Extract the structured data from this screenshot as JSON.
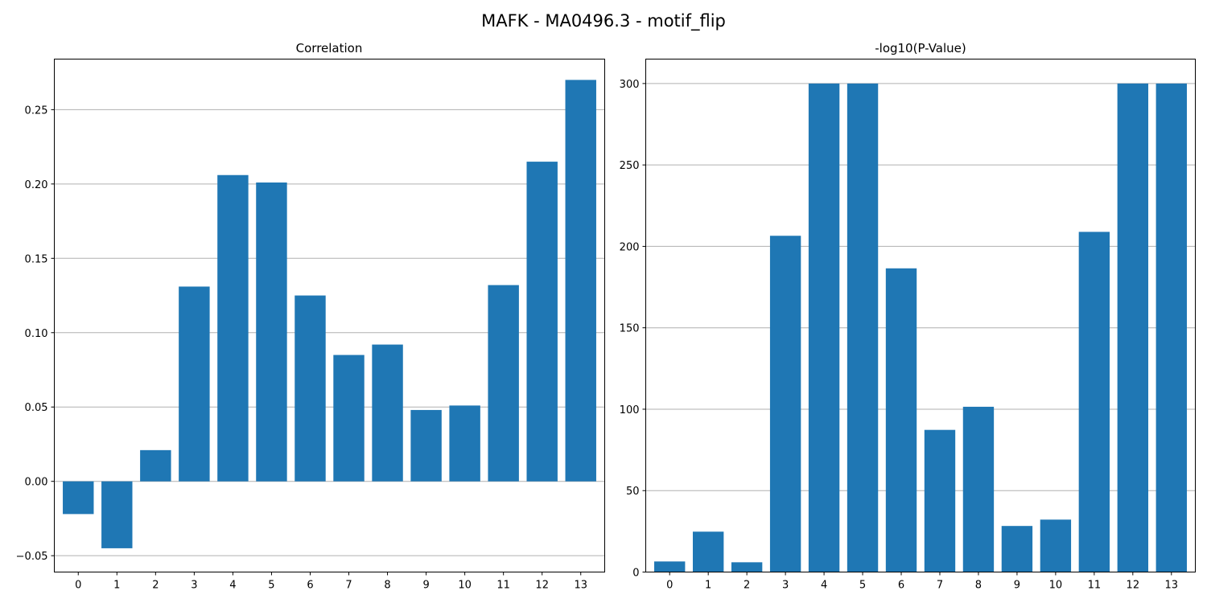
{
  "figure": {
    "title": "MAFK - MA0496.3 - motif_flip"
  },
  "colors": {
    "bar": "#1f77b4",
    "grid": "#b0b0b0",
    "axis": "#000000"
  },
  "chart_data": [
    {
      "type": "bar",
      "title": "Correlation",
      "xlabel": "",
      "ylabel": "",
      "categories": [
        "0",
        "1",
        "2",
        "3",
        "4",
        "5",
        "6",
        "7",
        "8",
        "9",
        "10",
        "11",
        "12",
        "13"
      ],
      "values": [
        -0.022,
        -0.045,
        0.021,
        0.131,
        0.206,
        0.201,
        0.125,
        0.085,
        0.092,
        0.048,
        0.051,
        0.132,
        0.215,
        0.27
      ],
      "ylim": [
        -0.061,
        0.284
      ],
      "yticks": [
        -0.05,
        0.0,
        0.05,
        0.1,
        0.15,
        0.2,
        0.25
      ],
      "ytick_labels": [
        "−0.05",
        "0.00",
        "0.05",
        "0.10",
        "0.15",
        "0.20",
        "0.25"
      ],
      "grid": "y"
    },
    {
      "type": "bar",
      "title": "-log10(P-Value)",
      "xlabel": "",
      "ylabel": "",
      "categories": [
        "0",
        "1",
        "2",
        "3",
        "4",
        "5",
        "6",
        "7",
        "8",
        "9",
        "10",
        "11",
        "12",
        "13"
      ],
      "values": [
        6.5,
        24.8,
        6.0,
        206.5,
        300.0,
        300.0,
        186.5,
        87.3,
        101.5,
        28.3,
        32.2,
        208.9,
        300.0,
        300.0
      ],
      "ylim": [
        0,
        315
      ],
      "yticks": [
        0,
        50,
        100,
        150,
        200,
        250,
        300
      ],
      "ytick_labels": [
        "0",
        "50",
        "100",
        "150",
        "200",
        "250",
        "300"
      ],
      "grid": "y"
    }
  ]
}
